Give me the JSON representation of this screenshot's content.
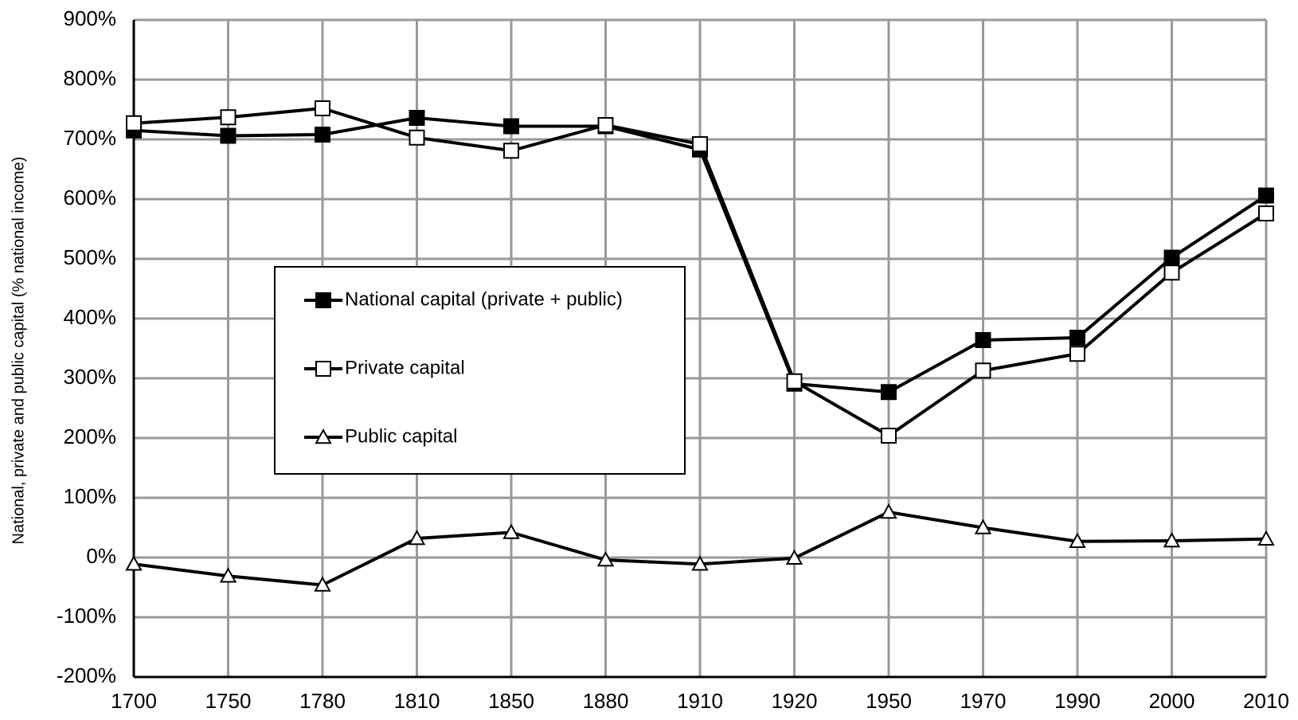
{
  "chart_data": {
    "type": "line",
    "y_label": "National, private and public capital (% national income)",
    "categories": [
      "1700",
      "1750",
      "1780",
      "1810",
      "1850",
      "1880",
      "1910",
      "1920",
      "1950",
      "1970",
      "1990",
      "2000",
      "2010"
    ],
    "series": [
      {
        "name": "National capital (private + public)",
        "color": "#000000",
        "marker": "square-filled",
        "values": [
          715,
          706,
          708,
          736,
          722,
          722,
          683,
          291,
          277,
          364,
          368,
          502,
          606
        ]
      },
      {
        "name": "Private capital",
        "color": "#000000",
        "marker": "square-open",
        "values": [
          727,
          737,
          752,
          703,
          681,
          724,
          692,
          295,
          204,
          313,
          341,
          477,
          576
        ]
      },
      {
        "name": "Public capital",
        "color": "#000000",
        "marker": "triangle-open",
        "values": [
          -11,
          -31,
          -46,
          32,
          42,
          -4,
          -11,
          -1,
          76,
          50,
          27,
          28,
          31
        ]
      }
    ],
    "ylim": [
      -200,
      900
    ],
    "yticks": [
      {
        "value": -200,
        "label": "-200%"
      },
      {
        "value": -100,
        "label": "-100%"
      },
      {
        "value": 0,
        "label": "0%"
      },
      {
        "value": 100,
        "label": "100%"
      },
      {
        "value": 200,
        "label": "200%"
      },
      {
        "value": 300,
        "label": "300%"
      },
      {
        "value": 400,
        "label": "400%"
      },
      {
        "value": 500,
        "label": "500%"
      },
      {
        "value": 600,
        "label": "600%"
      },
      {
        "value": 700,
        "label": "700%"
      },
      {
        "value": 800,
        "label": "800%"
      },
      {
        "value": 900,
        "label": "900%"
      }
    ],
    "grid": true
  }
}
